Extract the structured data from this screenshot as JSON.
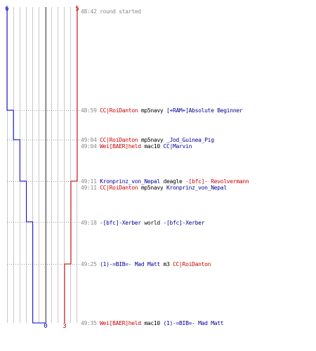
{
  "score": {
    "blue_start": "6",
    "red_start": "5",
    "blue_end": "0",
    "red_end": "3"
  },
  "colors": {
    "blue_team": "#0000cc",
    "red_team": "#cc0000",
    "grid": "#c8c8c8",
    "center_line": "#777777",
    "time": "#888888"
  },
  "chart_data": {
    "type": "line",
    "series": [
      {
        "team": "blue",
        "x": [
          "48:42",
          "48:59",
          "49:04",
          "49:11",
          "49:18",
          "49:35"
        ],
        "y": [
          6,
          5,
          4,
          3,
          2,
          0
        ]
      },
      {
        "team": "red",
        "x": [
          "48:42",
          "49:11",
          "49:25"
        ],
        "y": [
          5,
          4,
          3
        ]
      }
    ]
  },
  "log": [
    {
      "time": "48:42",
      "parts": [
        {
          "text": "round started",
          "color": "note"
        }
      ]
    },
    {
      "time": "48:59",
      "parts": [
        {
          "text": "CC|RoiDanton",
          "color": "red"
        },
        {
          "text": " mp5navy ",
          "color": "black"
        },
        {
          "text": "[+RAM+]Absolute Beginner",
          "color": "blue"
        }
      ]
    },
    {
      "time": "49:04",
      "parts": [
        {
          "text": "CC|RoiDanton",
          "color": "red"
        },
        {
          "text": " mp5navy ",
          "color": "black"
        },
        {
          "text": "_Jod_Guinea_Pig",
          "color": "blue"
        }
      ]
    },
    {
      "time": "49:04",
      "parts": [
        {
          "text": "Wei[BAER]held",
          "color": "red"
        },
        {
          "text": " mac10 ",
          "color": "black"
        },
        {
          "text": "CC|Marvin",
          "color": "blue"
        }
      ]
    },
    {
      "time": "49:11",
      "parts": [
        {
          "text": "Kronprinz_von_Nepal",
          "color": "blue"
        },
        {
          "text": " deagle ",
          "color": "black"
        },
        {
          "text": "-[bfc]- Revolvermann",
          "color": "red"
        }
      ]
    },
    {
      "time": "49:11",
      "parts": [
        {
          "text": "CC|RoiDanton",
          "color": "red"
        },
        {
          "text": " mp5navy ",
          "color": "black"
        },
        {
          "text": "Kronprinz_von_Nepal",
          "color": "blue"
        }
      ]
    },
    {
      "time": "49:18",
      "parts": [
        {
          "text": "-[bfc]-Xerber",
          "color": "blue"
        },
        {
          "text": " world ",
          "color": "black"
        },
        {
          "text": "-[bfc]-Xerber",
          "color": "blue"
        }
      ]
    },
    {
      "time": "49:25",
      "parts": [
        {
          "text": "(1)-=BIB=- Mad Matt",
          "color": "blue"
        },
        {
          "text": " m3 ",
          "color": "black"
        },
        {
          "text": "CC|RoiDanton",
          "color": "red"
        }
      ]
    },
    {
      "time": "49:35",
      "parts": [
        {
          "text": "Wei[BAER]held",
          "color": "red"
        },
        {
          "text": " mac10 ",
          "color": "black"
        },
        {
          "text": "(1)-=BIB=- Mad Matt",
          "color": "blue"
        }
      ]
    }
  ]
}
